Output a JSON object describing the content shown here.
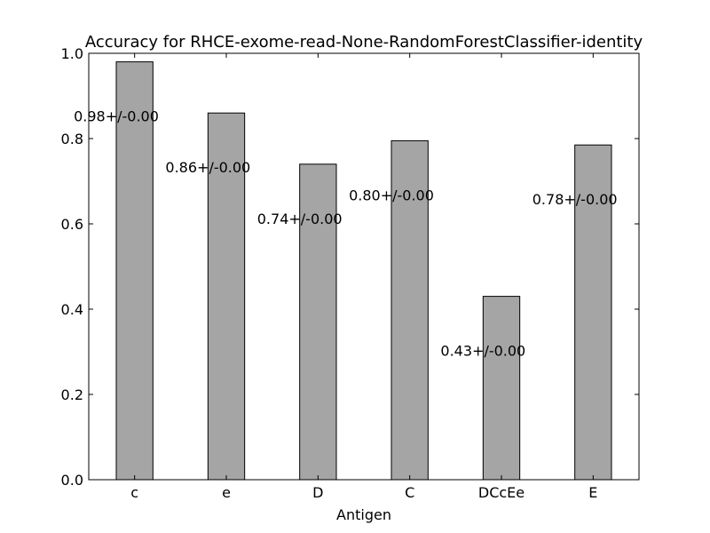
{
  "chart_data": {
    "type": "bar",
    "title": "Accuracy for RHCE-exome-read-None-RandomForestClassifier-identity",
    "xlabel": "Antigen",
    "ylabel": "",
    "categories": [
      "c",
      "e",
      "D",
      "C",
      "DCcEe",
      "E"
    ],
    "values": [
      0.98,
      0.86,
      0.74,
      0.795,
      0.43,
      0.785
    ],
    "data_labels": [
      "0.98+/-0.00",
      "0.86+/-0.00",
      "0.74+/-0.00",
      "0.80+/-0.00",
      "0.43+/-0.00",
      "0.78+/-0.00"
    ],
    "ylim": [
      0.0,
      1.0
    ],
    "yticks": [
      0.0,
      0.2,
      0.4,
      0.6,
      0.8,
      1.0
    ],
    "ytick_labels": [
      "0.0",
      "0.2",
      "0.4",
      "0.6",
      "0.8",
      "1.0"
    ],
    "grid": false,
    "bar_color": "#a5a5a5",
    "edge_color": "#000000"
  }
}
